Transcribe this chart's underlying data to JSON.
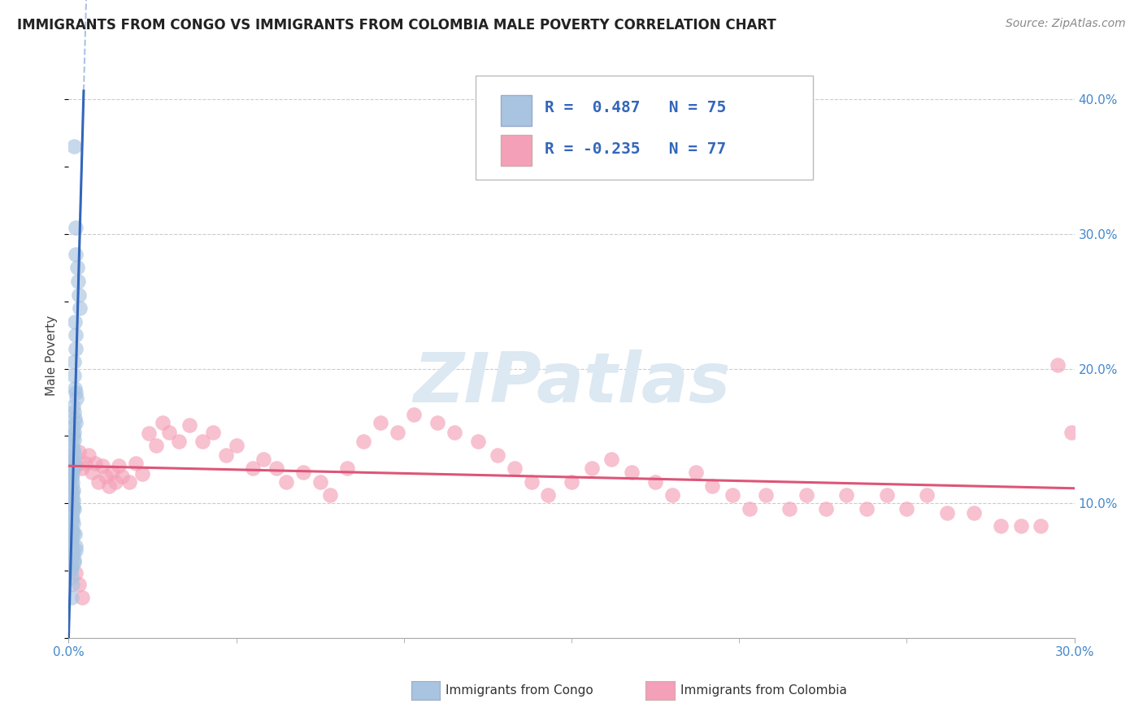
{
  "title": "IMMIGRANTS FROM CONGO VS IMMIGRANTS FROM COLOMBIA MALE POVERTY CORRELATION CHART",
  "source": "Source: ZipAtlas.com",
  "ylabel": "Male Poverty",
  "xlim": [
    0.0,
    0.3
  ],
  "ylim": [
    0.0,
    0.42
  ],
  "xtick_positions": [
    0.0,
    0.3
  ],
  "xtick_labels": [
    "0.0%",
    "30.0%"
  ],
  "ytick_positions": [
    0.1,
    0.2,
    0.3,
    0.4
  ],
  "ytick_labels": [
    "10.0%",
    "20.0%",
    "30.0%",
    "40.0%"
  ],
  "grid_color": "#cccccc",
  "background": "#ffffff",
  "congo_color": "#a8c4e0",
  "colombia_color": "#f4a0b8",
  "congo_line_color": "#3366bb",
  "colombia_line_color": "#dd5577",
  "R_congo": 0.487,
  "N_congo": 75,
  "R_colombia": -0.235,
  "N_colombia": 77,
  "legend_label_congo": "Immigrants from Congo",
  "legend_label_colombia": "Immigrants from Colombia",
  "watermark": "ZIPatlas",
  "congo_x": [
    0.0015,
    0.002,
    0.0022,
    0.0025,
    0.0028,
    0.003,
    0.0032,
    0.0018,
    0.002,
    0.0022,
    0.0015,
    0.0017,
    0.0019,
    0.0021,
    0.0023,
    0.0014,
    0.0016,
    0.0018,
    0.002,
    0.0013,
    0.0015,
    0.0014,
    0.0016,
    0.0012,
    0.0013,
    0.0015,
    0.0017,
    0.0013,
    0.0015,
    0.0011,
    0.0012,
    0.001,
    0.0009,
    0.0012,
    0.001,
    0.0014,
    0.0012,
    0.001,
    0.0011,
    0.0013,
    0.001,
    0.0011,
    0.0013,
    0.0015,
    0.0012,
    0.001,
    0.0008,
    0.0011,
    0.0009,
    0.0013,
    0.0007,
    0.001,
    0.0009,
    0.0011,
    0.0013,
    0.0018,
    0.0009,
    0.001,
    0.0007,
    0.0009,
    0.002,
    0.0008,
    0.001,
    0.0022,
    0.0013,
    0.0011,
    0.0009,
    0.0015,
    0.0017,
    0.001,
    0.0008,
    0.0007,
    0.001,
    0.0012,
    0.0008
  ],
  "congo_y": [
    0.365,
    0.305,
    0.285,
    0.275,
    0.265,
    0.255,
    0.245,
    0.235,
    0.225,
    0.215,
    0.205,
    0.195,
    0.185,
    0.182,
    0.178,
    0.172,
    0.168,
    0.163,
    0.16,
    0.157,
    0.153,
    0.15,
    0.147,
    0.143,
    0.14,
    0.137,
    0.133,
    0.13,
    0.128,
    0.125,
    0.122,
    0.12,
    0.118,
    0.115,
    0.112,
    0.11,
    0.108,
    0.106,
    0.104,
    0.102,
    0.1,
    0.098,
    0.097,
    0.096,
    0.094,
    0.092,
    0.09,
    0.088,
    0.086,
    0.085,
    0.083,
    0.081,
    0.08,
    0.079,
    0.078,
    0.077,
    0.075,
    0.073,
    0.071,
    0.07,
    0.068,
    0.067,
    0.066,
    0.065,
    0.063,
    0.062,
    0.06,
    0.058,
    0.056,
    0.054,
    0.052,
    0.05,
    0.045,
    0.04,
    0.03
  ],
  "colombia_x": [
    0.001,
    0.002,
    0.003,
    0.004,
    0.005,
    0.006,
    0.007,
    0.008,
    0.009,
    0.01,
    0.011,
    0.012,
    0.013,
    0.014,
    0.015,
    0.016,
    0.018,
    0.02,
    0.022,
    0.024,
    0.026,
    0.028,
    0.03,
    0.033,
    0.036,
    0.04,
    0.043,
    0.047,
    0.05,
    0.055,
    0.058,
    0.062,
    0.065,
    0.07,
    0.075,
    0.078,
    0.083,
    0.088,
    0.093,
    0.098,
    0.103,
    0.11,
    0.115,
    0.122,
    0.128,
    0.133,
    0.138,
    0.143,
    0.15,
    0.156,
    0.162,
    0.168,
    0.175,
    0.18,
    0.187,
    0.192,
    0.198,
    0.203,
    0.208,
    0.215,
    0.22,
    0.226,
    0.232,
    0.238,
    0.244,
    0.25,
    0.256,
    0.262,
    0.27,
    0.278,
    0.284,
    0.29,
    0.295,
    0.299,
    0.002,
    0.003,
    0.004
  ],
  "colombia_y": [
    0.132,
    0.128,
    0.138,
    0.126,
    0.13,
    0.136,
    0.123,
    0.13,
    0.116,
    0.128,
    0.12,
    0.113,
    0.123,
    0.116,
    0.128,
    0.12,
    0.116,
    0.13,
    0.122,
    0.152,
    0.143,
    0.16,
    0.153,
    0.146,
    0.158,
    0.146,
    0.153,
    0.136,
    0.143,
    0.126,
    0.133,
    0.126,
    0.116,
    0.123,
    0.116,
    0.106,
    0.126,
    0.146,
    0.16,
    0.153,
    0.166,
    0.16,
    0.153,
    0.146,
    0.136,
    0.126,
    0.116,
    0.106,
    0.116,
    0.126,
    0.133,
    0.123,
    0.116,
    0.106,
    0.123,
    0.113,
    0.106,
    0.096,
    0.106,
    0.096,
    0.106,
    0.096,
    0.106,
    0.096,
    0.106,
    0.096,
    0.106,
    0.093,
    0.093,
    0.083,
    0.083,
    0.083,
    0.203,
    0.153,
    0.048,
    0.04,
    0.03
  ]
}
